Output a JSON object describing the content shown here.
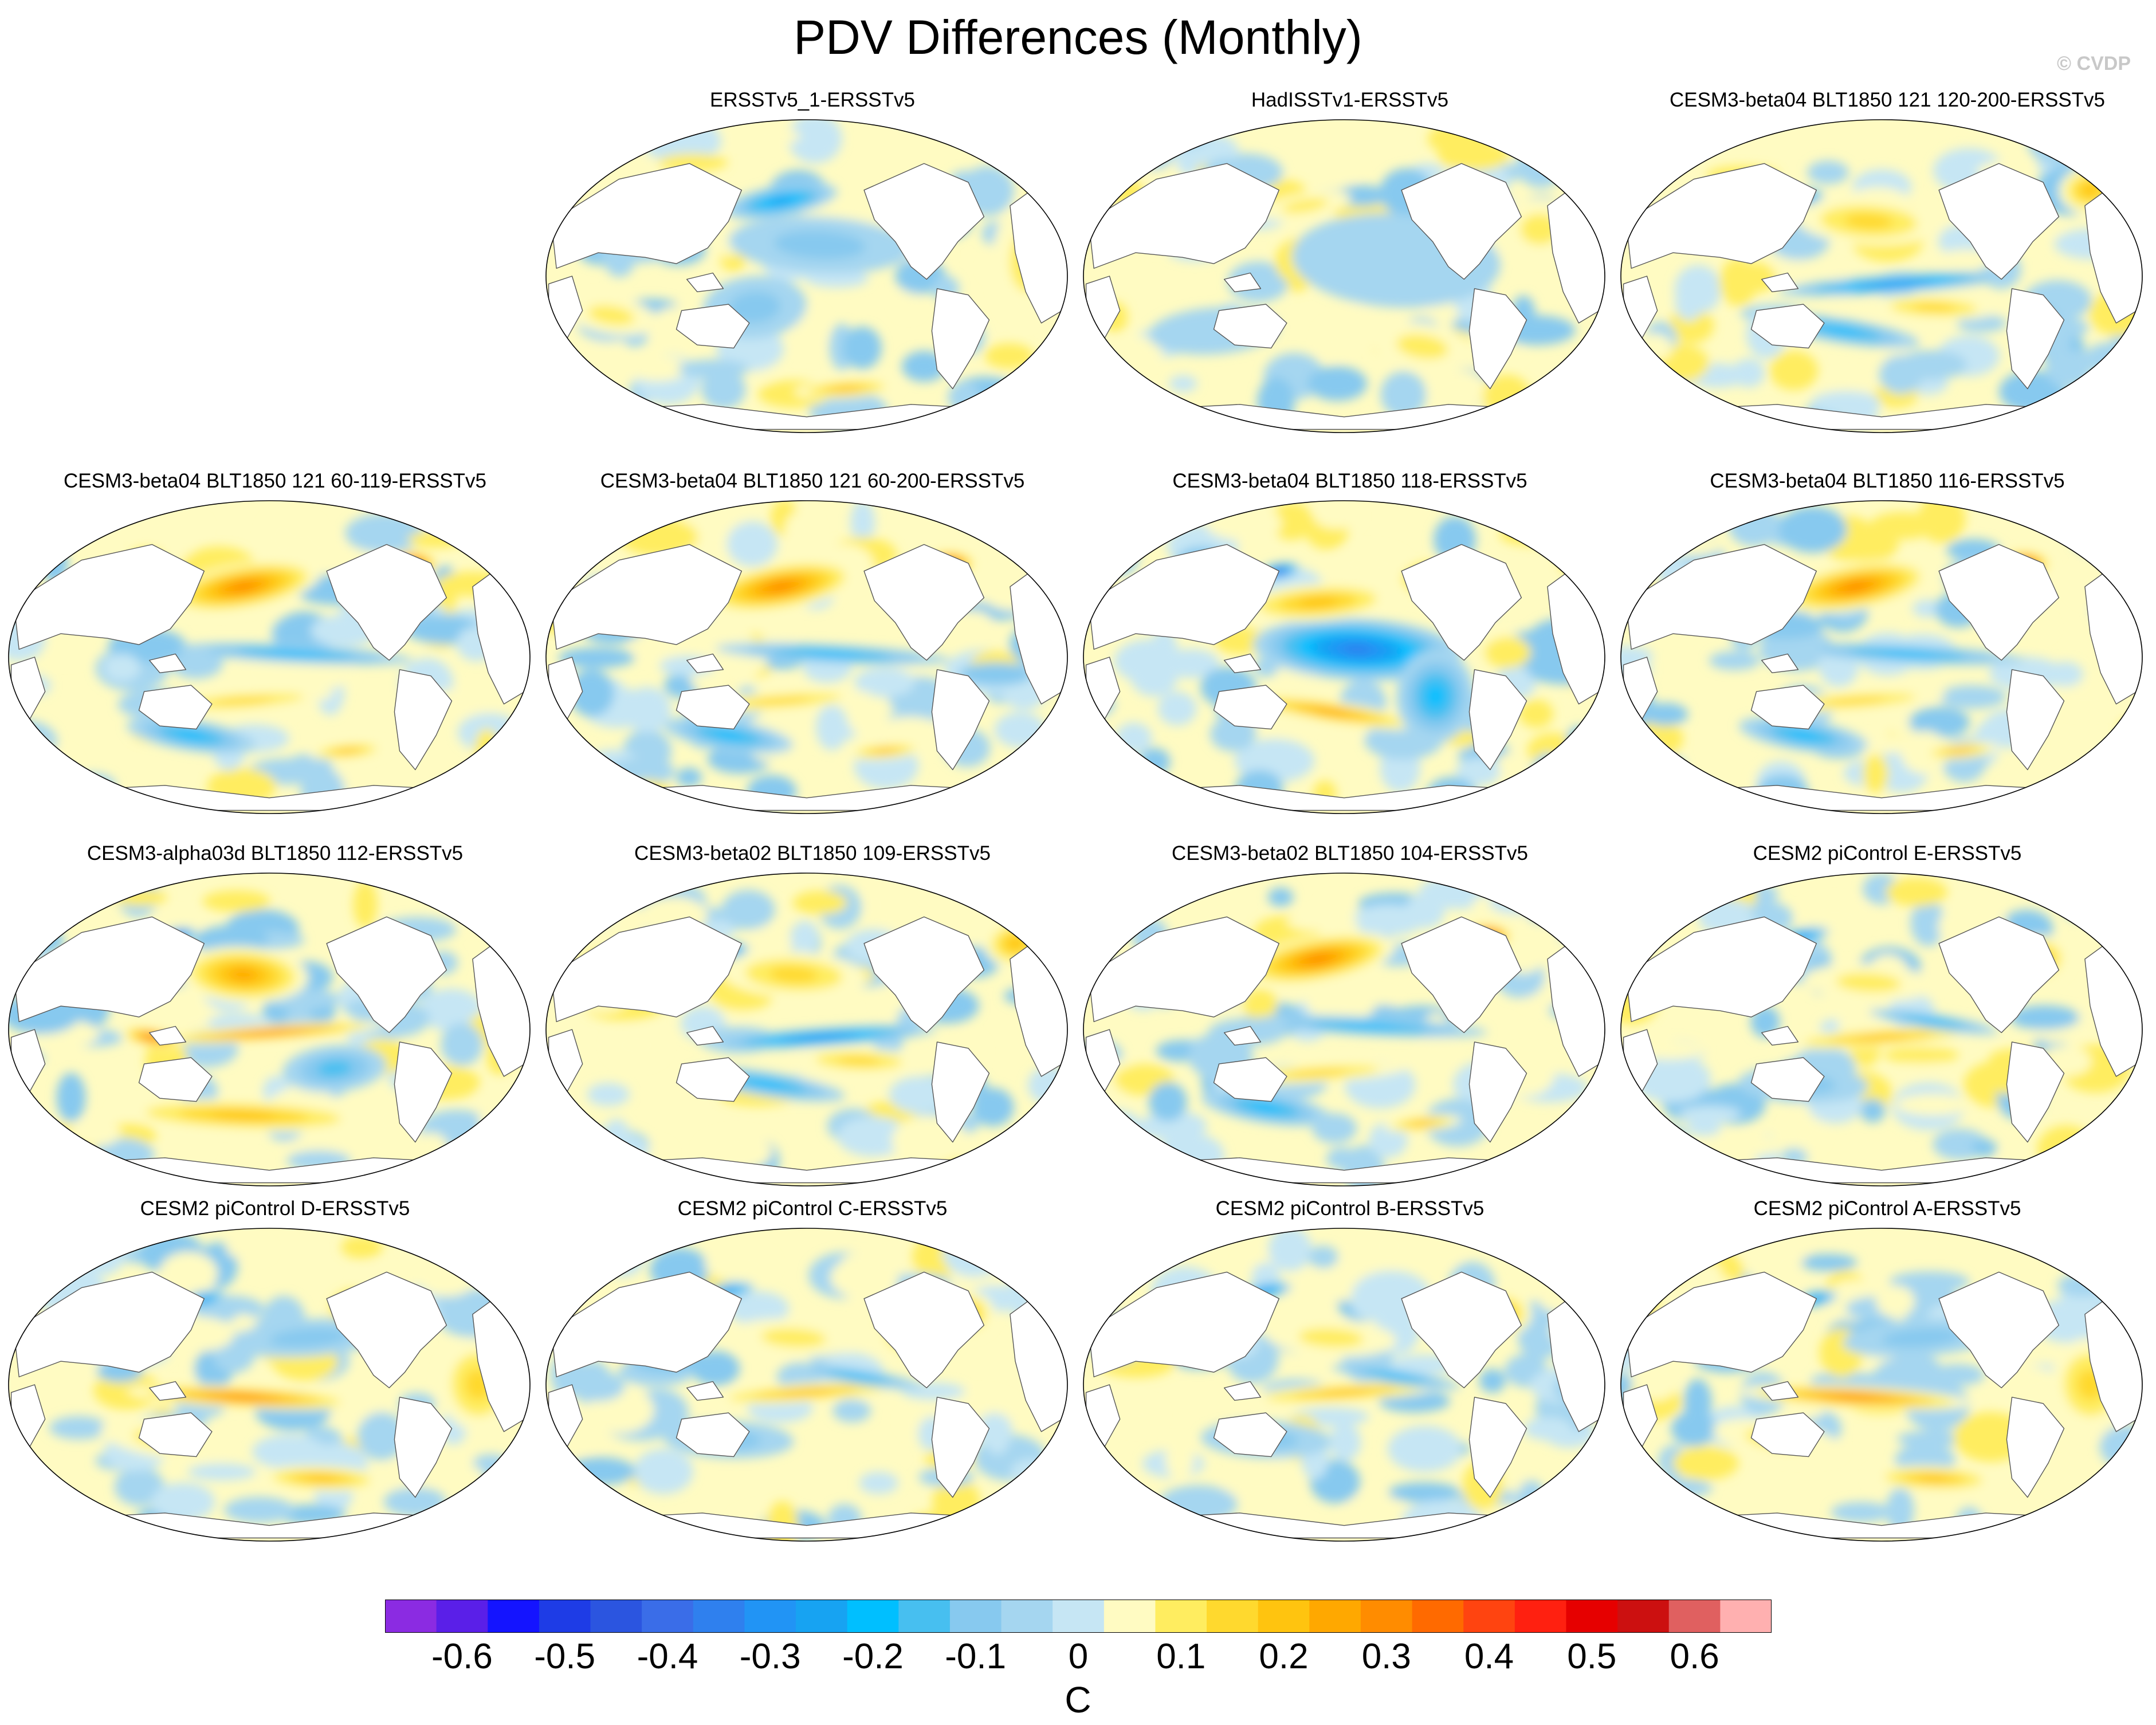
{
  "title": "PDV Differences (Monthly)",
  "watermark": "© CVDP",
  "panels": [
    {
      "title": "ERSSTv5_1-ERSSTv5",
      "row": 0,
      "col": 1,
      "pattern": "obs_ersst"
    },
    {
      "title": "HadISSTv1-ERSSTv5",
      "row": 0,
      "col": 2,
      "pattern": "obs_hadisst"
    },
    {
      "title": "CESM3-beta04 BLT1850 121 120-200-ERSSTv5",
      "row": 0,
      "col": 3,
      "pattern": "model_mixed"
    },
    {
      "title": "CESM3-beta04 BLT1850 121 60-119-ERSSTv5",
      "row": 1,
      "col": 0,
      "pattern": "model_warm_np"
    },
    {
      "title": "CESM3-beta04 BLT1850 121 60-200-ERSSTv5",
      "row": 1,
      "col": 1,
      "pattern": "model_warm_np"
    },
    {
      "title": "CESM3-beta04 BLT1850 118-ERSSTv5",
      "row": 1,
      "col": 2,
      "pattern": "model_cold_ep"
    },
    {
      "title": "CESM3-beta04 BLT1850 116-ERSSTv5",
      "row": 1,
      "col": 3,
      "pattern": "model_warm_np"
    },
    {
      "title": "CESM3-alpha03d BLT1850 112-ERSSTv5",
      "row": 2,
      "col": 0,
      "pattern": "model_warm_band"
    },
    {
      "title": "CESM3-beta02 BLT1850 109-ERSSTv5",
      "row": 2,
      "col": 1,
      "pattern": "model_mixed"
    },
    {
      "title": "CESM3-beta02 BLT1850 104-ERSSTv5",
      "row": 2,
      "col": 2,
      "pattern": "model_warm_np"
    },
    {
      "title": "CESM2 piControl E-ERSSTv5",
      "row": 2,
      "col": 3,
      "pattern": "cesm2"
    },
    {
      "title": "CESM2 piControl D-ERSSTv5",
      "row": 3,
      "col": 0,
      "pattern": "cesm2_warm"
    },
    {
      "title": "CESM2 piControl C-ERSSTv5",
      "row": 3,
      "col": 1,
      "pattern": "cesm2"
    },
    {
      "title": "CESM2 piControl B-ERSSTv5",
      "row": 3,
      "col": 2,
      "pattern": "cesm2"
    },
    {
      "title": "CESM2 piControl A-ERSSTv5",
      "row": 3,
      "col": 3,
      "pattern": "cesm2_warm"
    }
  ],
  "colorbar": {
    "unit": "C",
    "levels": [
      -0.65,
      -0.6,
      -0.55,
      -0.5,
      -0.45,
      -0.4,
      -0.35,
      -0.3,
      -0.25,
      -0.2,
      -0.15,
      -0.1,
      -0.05,
      0,
      0.05,
      0.1,
      0.15,
      0.2,
      0.25,
      0.3,
      0.35,
      0.4,
      0.45,
      0.5,
      0.55,
      0.6,
      0.65
    ],
    "tick_labels": [
      "-0.6",
      "-0.5",
      "-0.4",
      "-0.3",
      "-0.2",
      "-0.1",
      "0",
      "0.1",
      "0.2",
      "0.3",
      "0.4",
      "0.5",
      "0.6"
    ],
    "tick_values": [
      -0.6,
      -0.5,
      -0.4,
      -0.3,
      -0.2,
      -0.1,
      0,
      0.1,
      0.2,
      0.3,
      0.4,
      0.5,
      0.6
    ],
    "colors": [
      "#8b2be2",
      "#5a1fe8",
      "#1414ff",
      "#1e3ce6",
      "#2b55e0",
      "#3a6de8",
      "#2f80ee",
      "#2194f5",
      "#17a3f2",
      "#00bfff",
      "#47bff0",
      "#87c9ef",
      "#a5d6f0",
      "#c6e6f4",
      "#fffbc2",
      "#ffed60",
      "#ffd92e",
      "#ffc40f",
      "#ffa800",
      "#ff8c00",
      "#ff6a00",
      "#ff4410",
      "#ff2010",
      "#e60000",
      "#cc1010",
      "#e06060",
      "#ffb0b0"
    ]
  }
}
